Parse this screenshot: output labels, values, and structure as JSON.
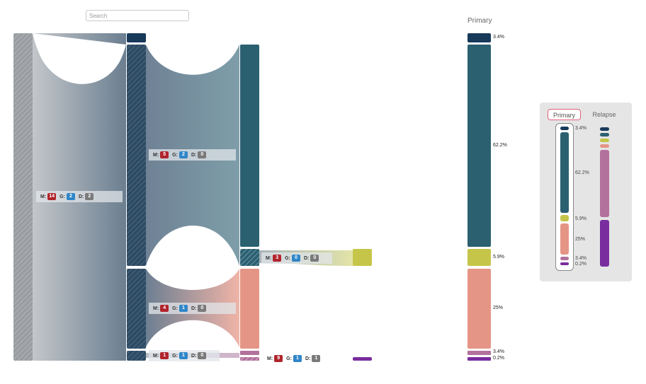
{
  "search": {
    "placeholder": "Search"
  },
  "column_title": "Primary",
  "colors": {
    "navy": "#17395a",
    "teal": "#2b6071",
    "olive": "#c5c54a",
    "salmon": "#e59585",
    "mauve": "#b2719c",
    "purple": "#7a2d9e",
    "gray_node": "#a3a7ab",
    "slate_node": "#2e4b63",
    "badge_m": "#b0242c",
    "badge_g": "#2f86c8",
    "badge_d": "#7a7a7a",
    "legend_active_border": "#e0607a"
  },
  "counts": {
    "main": {
      "m_label": "M:",
      "m": "14",
      "g_label": "G:",
      "g": "2",
      "d_label": "D:",
      "d": "2"
    },
    "upper": {
      "m_label": "M:",
      "m": "5",
      "g_label": "G:",
      "g": "2",
      "d_label": "D:",
      "d": "0"
    },
    "olive": {
      "m_label": "M:",
      "m": "3",
      "g_label": "G:",
      "g": "0",
      "d_label": "D:",
      "d": "0"
    },
    "lower": {
      "m_label": "M:",
      "m": "4",
      "g_label": "G:",
      "g": "1",
      "d_label": "D:",
      "d": "0"
    },
    "small": {
      "m_label": "M:",
      "m": "1",
      "g_label": "G:",
      "g": "1",
      "d_label": "D:",
      "d": "0"
    },
    "purple": {
      "m_label": "M:",
      "m": "9",
      "g_label": "G:",
      "g": "1",
      "d_label": "D:",
      "d": "1"
    }
  },
  "percentages": {
    "navy": "3.4%",
    "teal": "62.2%",
    "olive": "5.9%",
    "salmon": "25%",
    "mauve": "3.4%",
    "purple": "0.2%"
  },
  "legend": {
    "tab_primary": "Primary",
    "tab_relapse": "Relapse",
    "pct": {
      "navy": "3.4%",
      "teal": "62.2%",
      "olive": "5.9%",
      "salmon": "25%",
      "mauve": "3.4%",
      "purple": "0.2%"
    }
  }
}
